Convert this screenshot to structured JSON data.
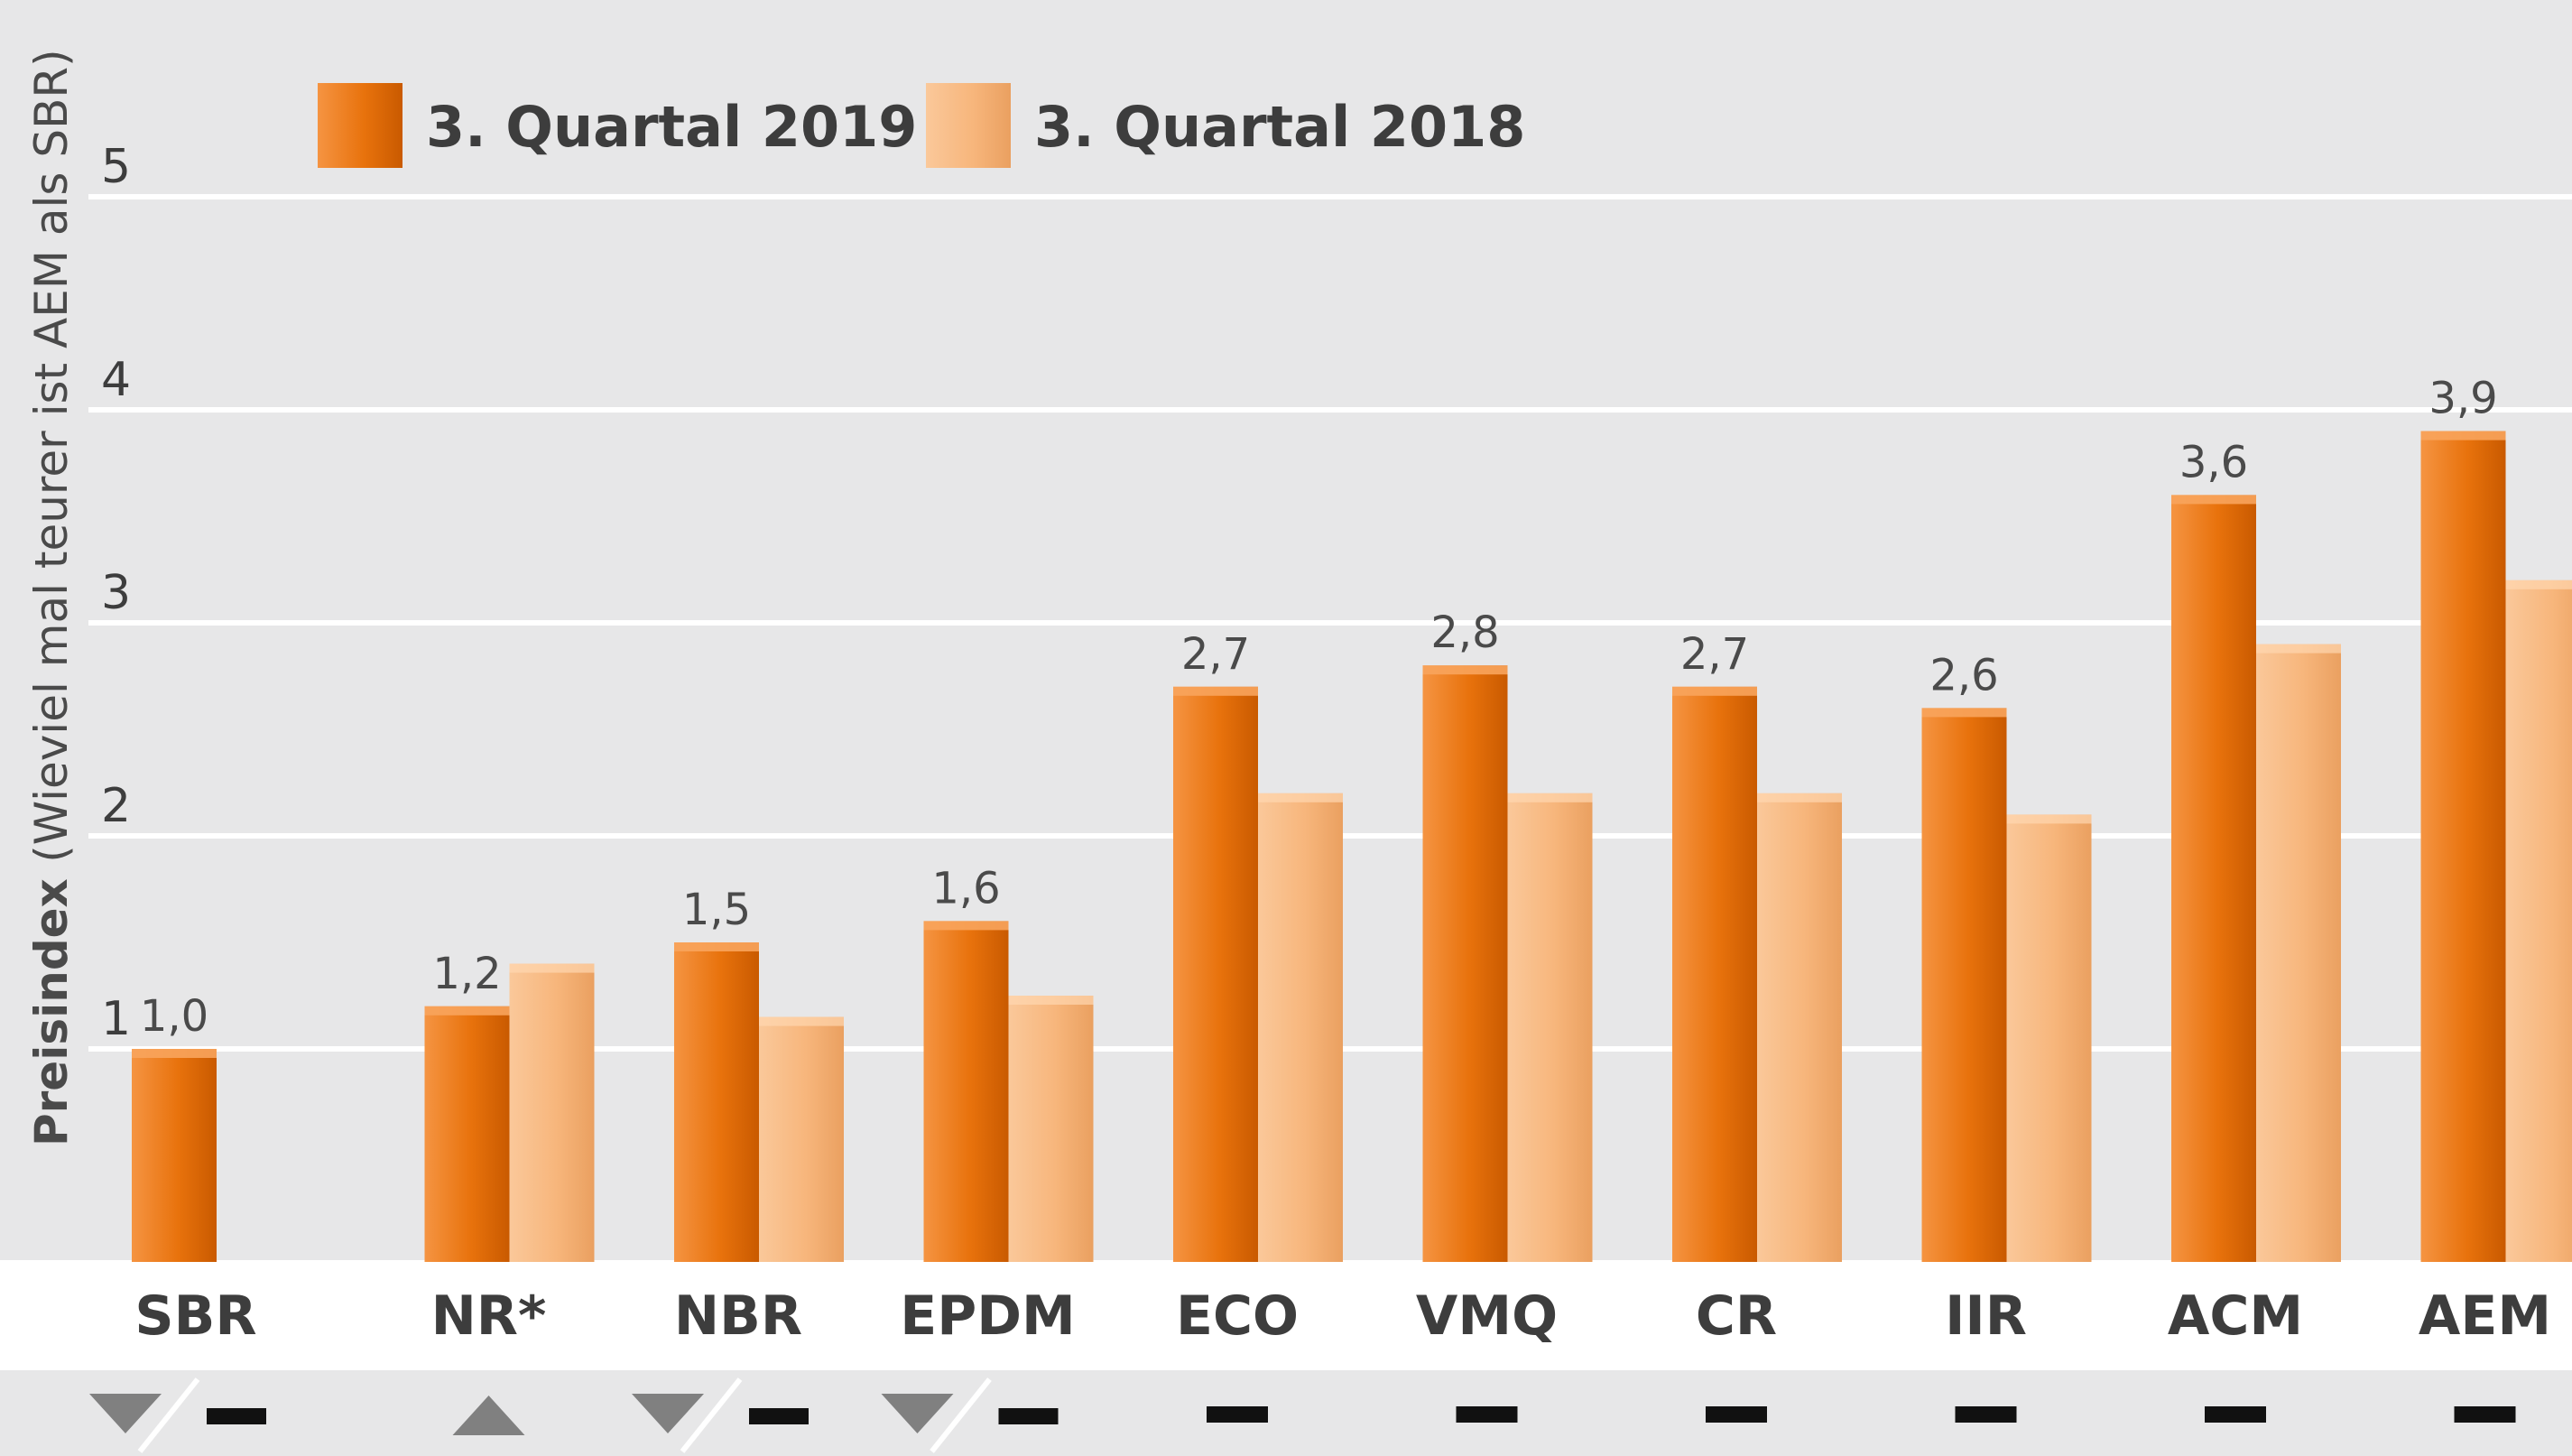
{
  "chart_data": {
    "type": "bar",
    "ylabel": "Preisindex",
    "ylabel_note": "(Wieviel  mal teurer ist AEM als SBR)",
    "ylim": [
      0,
      5
    ],
    "yticks": [
      "1",
      "2",
      "3",
      "4",
      "5"
    ],
    "grid": true,
    "legend_position": "top-left",
    "categories": [
      "SBR",
      "NR*",
      "NBR",
      "EPDM",
      "ECO",
      "VMQ",
      "CR",
      "IIR",
      "ACM",
      "AEM"
    ],
    "series": [
      {
        "name": "3. Quartal 2019",
        "color": "#e8720c",
        "values": [
          1.0,
          1.2,
          1.5,
          1.6,
          2.7,
          2.8,
          2.7,
          2.6,
          3.6,
          3.9
        ],
        "labels": [
          "1,0",
          "1,2",
          "1,5",
          "1,6",
          "2,7",
          "2,8",
          "2,7",
          "2,6",
          "3,6",
          "3,9"
        ]
      },
      {
        "name": "3. Quartal 2018",
        "color": "#f7b67c",
        "values": [
          null,
          1.4,
          1.15,
          1.25,
          2.2,
          2.2,
          2.2,
          2.1,
          2.9,
          3.2
        ]
      }
    ],
    "trend": [
      "down/flat",
      "up",
      "down/flat",
      "down/flat",
      "flat",
      "flat",
      "flat",
      "flat",
      "flat",
      "flat"
    ]
  },
  "colors": {
    "background_panel": "#e7e7e8",
    "grid": "#ffffff",
    "trend_marker": "#808080",
    "flat_marker": "#111111"
  }
}
